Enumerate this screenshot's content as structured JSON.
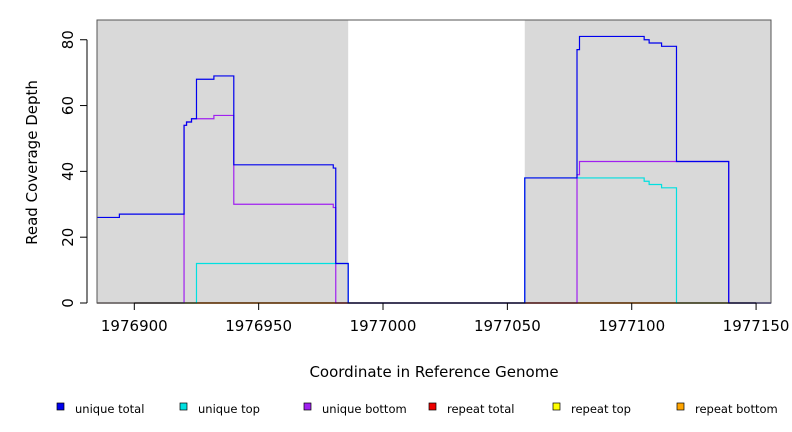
{
  "chart_data": {
    "type": "line",
    "xlabel": "Coordinate in Reference Genome",
    "ylabel": "Read Coverage Depth",
    "xlim": [
      1976885,
      1977156
    ],
    "ylim": [
      0,
      86
    ],
    "x_ticks": [
      1976900,
      1976950,
      1977000,
      1977050,
      1977100,
      1977150
    ],
    "y_ticks": [
      0,
      20,
      40,
      60,
      80
    ],
    "shaded_regions": [
      [
        1976885,
        1976986
      ],
      [
        1977057,
        1977156
      ]
    ],
    "background_color": "#d9d9d9",
    "legend_position": "bottom",
    "step": true,
    "series": [
      {
        "name": "unique total",
        "color": "#0000ee",
        "x": [
          1976885,
          1976894,
          1976920,
          1976921,
          1976922,
          1976923,
          1976925,
          1976932,
          1976940,
          1976980,
          1976981,
          1976986,
          1977057,
          1977078,
          1977079,
          1977104,
          1977105,
          1977107,
          1977111,
          1977112,
          1977118,
          1977139,
          1977156
        ],
        "y": [
          26,
          27,
          54,
          55,
          55,
          56,
          68,
          69,
          42,
          41,
          12,
          0,
          38,
          77,
          81,
          81,
          80,
          79,
          79,
          78,
          43,
          0,
          0
        ]
      },
      {
        "name": "unique top",
        "color": "#00e0e0",
        "x": [
          1976885,
          1976925,
          1976981,
          1976986,
          1977057,
          1977104,
          1977105,
          1977107,
          1977111,
          1977112,
          1977118,
          1977156
        ],
        "y": [
          0,
          12,
          12,
          0,
          38,
          38,
          37,
          36,
          36,
          35,
          0,
          0
        ]
      },
      {
        "name": "unique bottom",
        "color": "#a020f0",
        "x": [
          1976885,
          1976920,
          1976921,
          1976922,
          1976923,
          1976932,
          1976940,
          1976980,
          1976981,
          1977078,
          1977079,
          1977139,
          1977156
        ],
        "y": [
          0,
          54,
          55,
          55,
          56,
          57,
          30,
          29,
          0,
          39,
          43,
          0,
          0
        ]
      },
      {
        "name": "repeat total",
        "color": "#ee0000",
        "x": [
          1976885,
          1977156
        ],
        "y": [
          0,
          0
        ]
      },
      {
        "name": "repeat top",
        "color": "#ffff00",
        "x": [
          1976885,
          1977156
        ],
        "y": [
          0,
          0
        ]
      },
      {
        "name": "repeat bottom",
        "color": "#ffa500",
        "x": [
          1976885,
          1977156
        ],
        "y": [
          0,
          0
        ]
      }
    ]
  }
}
